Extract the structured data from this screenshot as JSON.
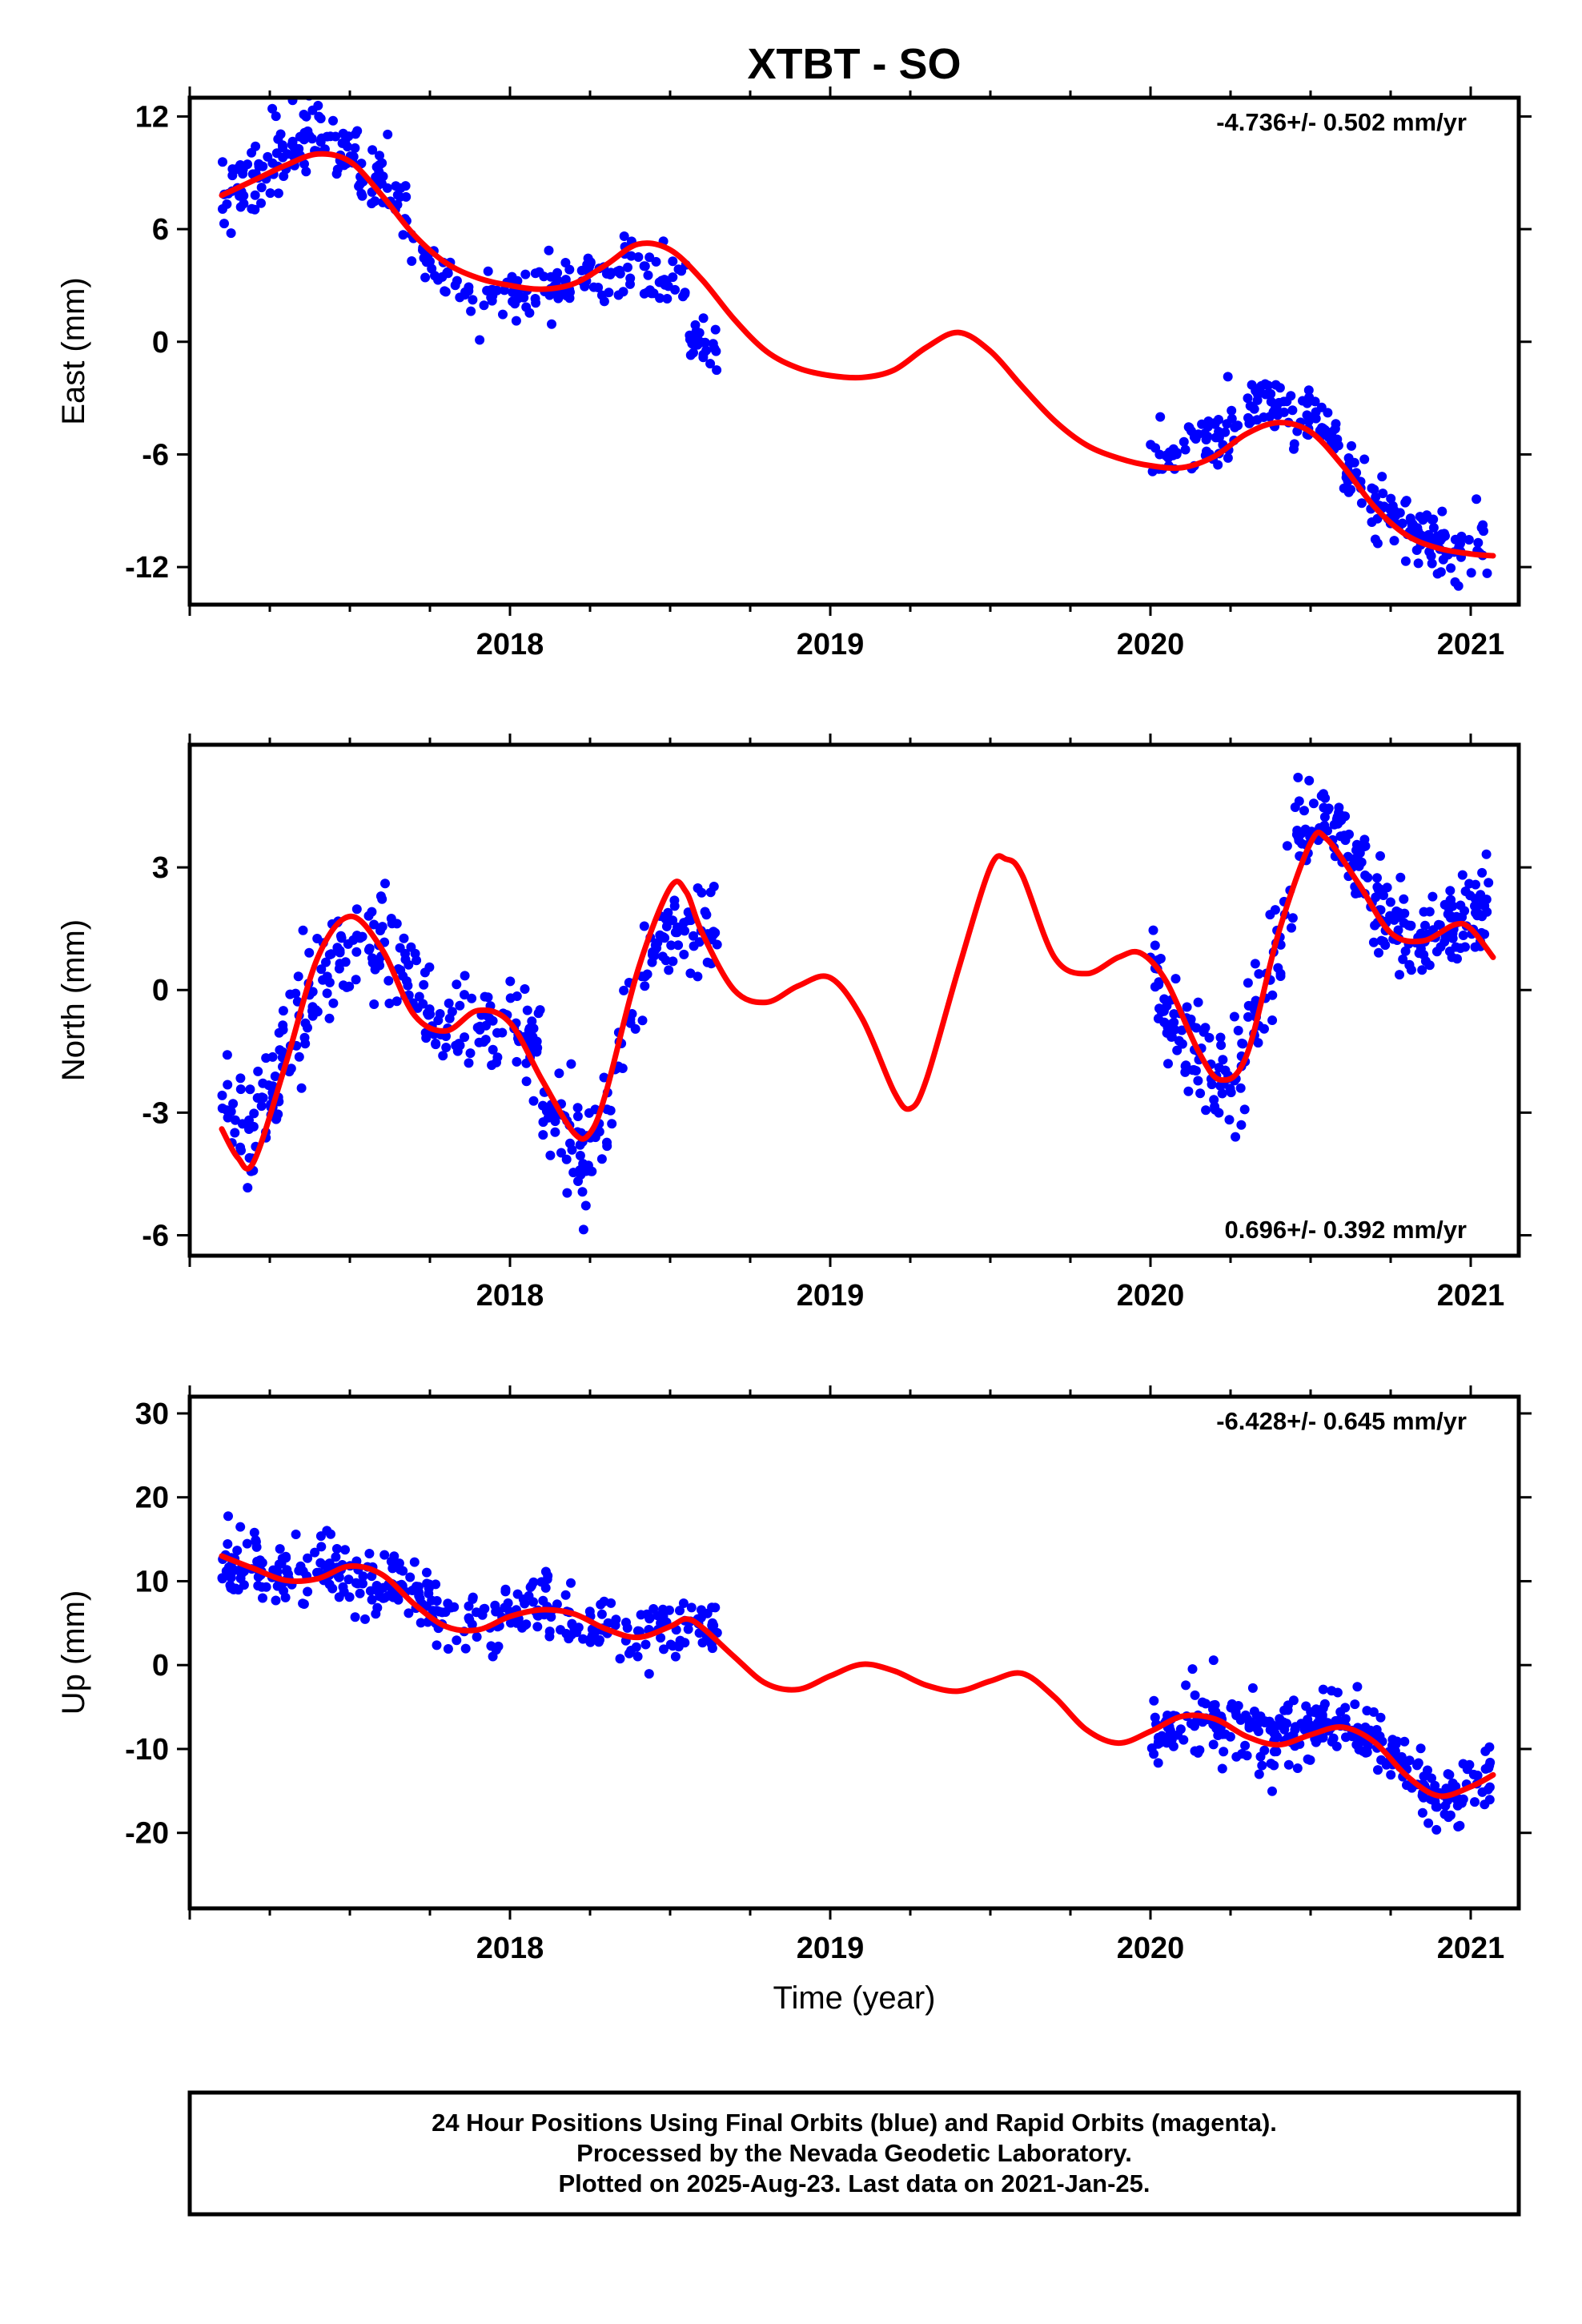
{
  "chart_data": {
    "title": "XTBT - SO",
    "xlabel": "Time (year)",
    "x_tick_labels": [
      "2018",
      "2019",
      "2020",
      "2021"
    ],
    "colors": {
      "final_orbits": "#0000ff",
      "rapid_orbits": "#ff00ff",
      "model": "#ff0000"
    },
    "footer": {
      "line1": "24 Hour Positions Using Final Orbits (blue) and Rapid Orbits (magenta).",
      "line2": "Processed by the Nevada Geodetic Laboratory.",
      "line3": "Plotted on 2025-Aug-23. Last data on 2021-Jan-25."
    },
    "panels": [
      {
        "type": "scatter",
        "ylabel": "East (mm)",
        "xlim": [
          2017.0,
          2021.15
        ],
        "ylim": [
          -14.0,
          13.0
        ],
        "yticks": [
          12,
          6,
          0,
          -6,
          -12
        ],
        "rate_text": "-4.736+/- 0.502 mm/yr",
        "rate_position": "top-right",
        "model_curve": [
          [
            2017.1,
            7.8
          ],
          [
            2017.2,
            8.6
          ],
          [
            2017.3,
            9.4
          ],
          [
            2017.4,
            10.0
          ],
          [
            2017.5,
            9.6
          ],
          [
            2017.6,
            7.8
          ],
          [
            2017.7,
            5.7
          ],
          [
            2017.8,
            4.2
          ],
          [
            2017.9,
            3.4
          ],
          [
            2018.0,
            3.0
          ],
          [
            2018.1,
            2.8
          ],
          [
            2018.2,
            3.1
          ],
          [
            2018.3,
            4.1
          ],
          [
            2018.4,
            5.2
          ],
          [
            2018.5,
            4.9
          ],
          [
            2018.6,
            3.3
          ],
          [
            2018.7,
            1.2
          ],
          [
            2018.8,
            -0.5
          ],
          [
            2018.9,
            -1.4
          ],
          [
            2019.0,
            -1.8
          ],
          [
            2019.1,
            -1.9
          ],
          [
            2019.2,
            -1.5
          ],
          [
            2019.3,
            -0.3
          ],
          [
            2019.4,
            0.5
          ],
          [
            2019.5,
            -0.5
          ],
          [
            2019.6,
            -2.4
          ],
          [
            2019.7,
            -4.2
          ],
          [
            2019.8,
            -5.5
          ],
          [
            2019.9,
            -6.2
          ],
          [
            2020.0,
            -6.6
          ],
          [
            2020.1,
            -6.7
          ],
          [
            2020.2,
            -6.1
          ],
          [
            2020.3,
            -4.9
          ],
          [
            2020.4,
            -4.3
          ],
          [
            2020.5,
            -4.8
          ],
          [
            2020.6,
            -6.6
          ],
          [
            2020.7,
            -8.8
          ],
          [
            2020.8,
            -10.3
          ],
          [
            2020.9,
            -11.0
          ],
          [
            2021.0,
            -11.3
          ],
          [
            2021.07,
            -11.4
          ]
        ],
        "segments": [
          {
            "x0": 2017.1,
            "x1": 2017.7,
            "trend": [
              [
                2017.1,
                7.5
              ],
              [
                2017.25,
                9.6
              ],
              [
                2017.4,
                11.0
              ],
              [
                2017.55,
                9.4
              ],
              [
                2017.7,
                6.1
              ]
            ],
            "scatter": 1.7,
            "n": 150
          },
          {
            "x0": 2017.7,
            "x1": 2018.55,
            "trend": [
              [
                2017.7,
                5.0
              ],
              [
                2017.9,
                2.2
              ],
              [
                2018.1,
                2.8
              ],
              [
                2018.3,
                3.8
              ],
              [
                2018.55,
                3.0
              ]
            ],
            "scatter": 1.3,
            "n": 150
          },
          {
            "x0": 2018.55,
            "x1": 2018.65,
            "trend": [
              [
                2018.55,
                0.4
              ],
              [
                2018.65,
                -0.6
              ]
            ],
            "scatter": 0.8,
            "n": 25
          },
          {
            "x0": 2020.0,
            "x1": 2020.6,
            "trend": [
              [
                2020.0,
                -6.3
              ],
              [
                2020.15,
                -5.7
              ],
              [
                2020.35,
                -3.2
              ],
              [
                2020.5,
                -4.2
              ],
              [
                2020.6,
                -5.6
              ]
            ],
            "scatter": 1.3,
            "n": 130
          },
          {
            "x0": 2020.6,
            "x1": 2021.07,
            "trend": [
              [
                2020.6,
                -7.2
              ],
              [
                2020.75,
                -9.2
              ],
              [
                2020.9,
                -11.0
              ],
              [
                2021.07,
                -10.6
              ]
            ],
            "scatter": 1.3,
            "n": 120
          }
        ]
      },
      {
        "type": "scatter",
        "ylabel": "North (mm)",
        "xlim": [
          2017.0,
          2021.15
        ],
        "ylim": [
          -6.5,
          6.0
        ],
        "yticks": [
          3,
          0,
          -3,
          -6
        ],
        "rate_text": "0.696+/- 0.392 mm/yr",
        "rate_position": "bottom-right",
        "model_curve": [
          [
            2017.1,
            -3.4
          ],
          [
            2017.15,
            -4.1
          ],
          [
            2017.2,
            -4.2
          ],
          [
            2017.3,
            -1.8
          ],
          [
            2017.4,
            0.8
          ],
          [
            2017.5,
            1.8
          ],
          [
            2017.6,
            1.0
          ],
          [
            2017.7,
            -0.6
          ],
          [
            2017.8,
            -1.0
          ],
          [
            2017.9,
            -0.5
          ],
          [
            2018.0,
            -0.8
          ],
          [
            2018.1,
            -2.2
          ],
          [
            2018.2,
            -3.5
          ],
          [
            2018.25,
            -3.5
          ],
          [
            2018.3,
            -2.5
          ],
          [
            2018.4,
            0.5
          ],
          [
            2018.5,
            2.5
          ],
          [
            2018.55,
            2.4
          ],
          [
            2018.6,
            1.4
          ],
          [
            2018.7,
            0.0
          ],
          [
            2018.8,
            -0.3
          ],
          [
            2018.9,
            0.1
          ],
          [
            2019.0,
            0.3
          ],
          [
            2019.1,
            -0.7
          ],
          [
            2019.2,
            -2.5
          ],
          [
            2019.25,
            -2.9
          ],
          [
            2019.3,
            -2.2
          ],
          [
            2019.4,
            0.5
          ],
          [
            2019.5,
            3.0
          ],
          [
            2019.55,
            3.2
          ],
          [
            2019.6,
            2.8
          ],
          [
            2019.7,
            0.8
          ],
          [
            2019.8,
            0.4
          ],
          [
            2019.9,
            0.8
          ],
          [
            2019.97,
            0.9
          ],
          [
            2020.05,
            0.2
          ],
          [
            2020.15,
            -1.5
          ],
          [
            2020.22,
            -2.2
          ],
          [
            2020.3,
            -1.6
          ],
          [
            2020.4,
            1.4
          ],
          [
            2020.5,
            3.6
          ],
          [
            2020.55,
            3.7
          ],
          [
            2020.65,
            2.6
          ],
          [
            2020.75,
            1.4
          ],
          [
            2020.85,
            1.2
          ],
          [
            2020.95,
            1.6
          ],
          [
            2021.0,
            1.5
          ],
          [
            2021.07,
            0.8
          ]
        ],
        "segments": [
          {
            "x0": 2017.1,
            "x1": 2017.45,
            "trend": [
              [
                2017.1,
                -2.8
              ],
              [
                2017.2,
                -4.0
              ],
              [
                2017.3,
                -1.5
              ],
              [
                2017.45,
                0.6
              ]
            ],
            "scatter": 1.2,
            "n": 100
          },
          {
            "x0": 2017.45,
            "x1": 2018.1,
            "trend": [
              [
                2017.45,
                0.8
              ],
              [
                2017.6,
                1.2
              ],
              [
                2017.8,
                -1.0
              ],
              [
                2018.0,
                -0.6
              ],
              [
                2018.1,
                -1.8
              ]
            ],
            "scatter": 0.9,
            "n": 160
          },
          {
            "x0": 2018.1,
            "x1": 2018.35,
            "trend": [
              [
                2018.1,
                -2.5
              ],
              [
                2018.25,
                -4.5
              ],
              [
                2018.35,
                -2.0
              ]
            ],
            "scatter": 1.1,
            "n": 70
          },
          {
            "x0": 2018.35,
            "x1": 2018.65,
            "trend": [
              [
                2018.35,
                -0.5
              ],
              [
                2018.5,
                1.5
              ],
              [
                2018.65,
                1.4
              ]
            ],
            "scatter": 0.9,
            "n": 70
          },
          {
            "x0": 2020.0,
            "x1": 2020.45,
            "trend": [
              [
                2020.0,
                0.3
              ],
              [
                2020.15,
                -1.8
              ],
              [
                2020.25,
                -2.2
              ],
              [
                2020.35,
                -0.5
              ],
              [
                2020.45,
                2.5
              ]
            ],
            "scatter": 1.1,
            "n": 130
          },
          {
            "x0": 2020.45,
            "x1": 2021.07,
            "trend": [
              [
                2020.45,
                3.8
              ],
              [
                2020.55,
                4.5
              ],
              [
                2020.7,
                2.2
              ],
              [
                2020.85,
                1.2
              ],
              [
                2021.0,
                2.0
              ],
              [
                2021.07,
                1.8
              ]
            ],
            "scatter": 0.9,
            "n": 200
          }
        ]
      },
      {
        "type": "scatter",
        "ylabel": "Up (mm)",
        "xlim": [
          2017.0,
          2021.15
        ],
        "ylim": [
          -29.0,
          32.0
        ],
        "yticks": [
          30,
          20,
          10,
          0,
          -10,
          -20
        ],
        "rate_text": "-6.428+/- 0.645 mm/yr",
        "rate_position": "top-right",
        "model_curve": [
          [
            2017.1,
            13.0
          ],
          [
            2017.2,
            11.5
          ],
          [
            2017.3,
            10.1
          ],
          [
            2017.4,
            10.3
          ],
          [
            2017.5,
            11.8
          ],
          [
            2017.6,
            10.8
          ],
          [
            2017.7,
            7.3
          ],
          [
            2017.8,
            4.6
          ],
          [
            2017.9,
            4.2
          ],
          [
            2018.0,
            5.8
          ],
          [
            2018.1,
            6.6
          ],
          [
            2018.2,
            6.1
          ],
          [
            2018.3,
            4.3
          ],
          [
            2018.4,
            3.3
          ],
          [
            2018.5,
            4.6
          ],
          [
            2018.55,
            5.5
          ],
          [
            2018.6,
            4.5
          ],
          [
            2018.7,
            1.0
          ],
          [
            2018.8,
            -2.2
          ],
          [
            2018.9,
            -2.9
          ],
          [
            2019.0,
            -1.3
          ],
          [
            2019.1,
            0.1
          ],
          [
            2019.2,
            -0.7
          ],
          [
            2019.3,
            -2.4
          ],
          [
            2019.4,
            -3.1
          ],
          [
            2019.5,
            -1.9
          ],
          [
            2019.6,
            -1.0
          ],
          [
            2019.7,
            -3.8
          ],
          [
            2019.8,
            -7.7
          ],
          [
            2019.9,
            -9.3
          ],
          [
            2020.0,
            -7.9
          ],
          [
            2020.1,
            -6.1
          ],
          [
            2020.2,
            -6.4
          ],
          [
            2020.3,
            -8.5
          ],
          [
            2020.4,
            -9.5
          ],
          [
            2020.5,
            -8.3
          ],
          [
            2020.6,
            -7.4
          ],
          [
            2020.7,
            -9.2
          ],
          [
            2020.8,
            -13.2
          ],
          [
            2020.9,
            -15.6
          ],
          [
            2021.0,
            -14.5
          ],
          [
            2021.07,
            -13.1
          ]
        ],
        "segments": [
          {
            "x0": 2017.1,
            "x1": 2017.75,
            "trend": [
              [
                2017.1,
                12.0
              ],
              [
                2017.3,
                10.5
              ],
              [
                2017.5,
                11.5
              ],
              [
                2017.75,
                8.0
              ]
            ],
            "scatter": 3.2,
            "n": 180
          },
          {
            "x0": 2017.75,
            "x1": 2018.65,
            "trend": [
              [
                2017.75,
                6.0
              ],
              [
                2017.9,
                4.5
              ],
              [
                2018.1,
                7.5
              ],
              [
                2018.3,
                4.0
              ],
              [
                2018.5,
                3.5
              ],
              [
                2018.65,
                5.0
              ]
            ],
            "scatter": 3.0,
            "n": 180
          },
          {
            "x0": 2020.0,
            "x1": 2021.07,
            "trend": [
              [
                2020.0,
                -8.0
              ],
              [
                2020.2,
                -6.5
              ],
              [
                2020.4,
                -8.5
              ],
              [
                2020.6,
                -7.0
              ],
              [
                2020.8,
                -12.0
              ],
              [
                2020.9,
                -16.0
              ],
              [
                2021.07,
                -13.5
              ]
            ],
            "scatter": 3.2,
            "n": 300
          }
        ]
      }
    ]
  }
}
